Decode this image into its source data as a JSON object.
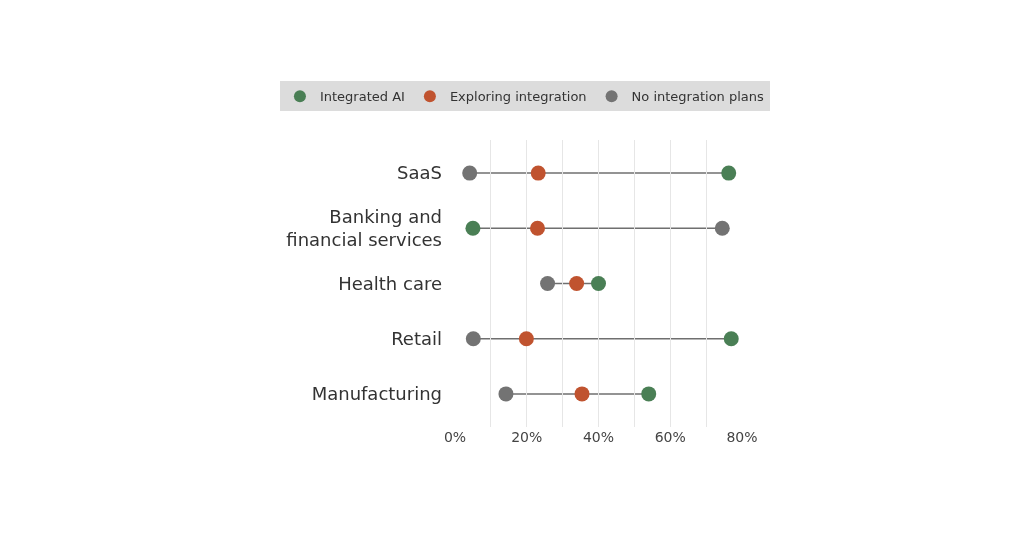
{
  "chart_data": {
    "type": "scatter",
    "orientation": "horizontal",
    "categories": [
      "SaaS",
      "Banking and financial services",
      "Health care",
      "Retail",
      "Manufacturing"
    ],
    "series": [
      {
        "name": "Integrated AI",
        "color": "#4a7f55",
        "values": [
          76.3,
          5.0,
          40.0,
          77.0,
          54.0
        ]
      },
      {
        "name": "Exploring integration",
        "color": "#c0532f",
        "values": [
          23.2,
          23.0,
          33.9,
          19.9,
          35.4
        ]
      },
      {
        "name": "No integration plans",
        "color": "#737373",
        "values": [
          4.1,
          74.5,
          25.8,
          5.1,
          14.2
        ]
      }
    ],
    "xlim": [
      0,
      80
    ],
    "xticks": [
      {
        "value": 0,
        "label": "0%"
      },
      {
        "value": 10,
        "label": null
      },
      {
        "value": 20,
        "label": "20%"
      },
      {
        "value": 30,
        "label": null
      },
      {
        "value": 40,
        "label": "40%"
      },
      {
        "value": 50,
        "label": null
      },
      {
        "value": 60,
        "label": "60%"
      },
      {
        "value": 70,
        "label": null
      },
      {
        "value": 80,
        "label": "80%"
      }
    ],
    "grid": "x",
    "legend": "top",
    "marker": "circle"
  }
}
